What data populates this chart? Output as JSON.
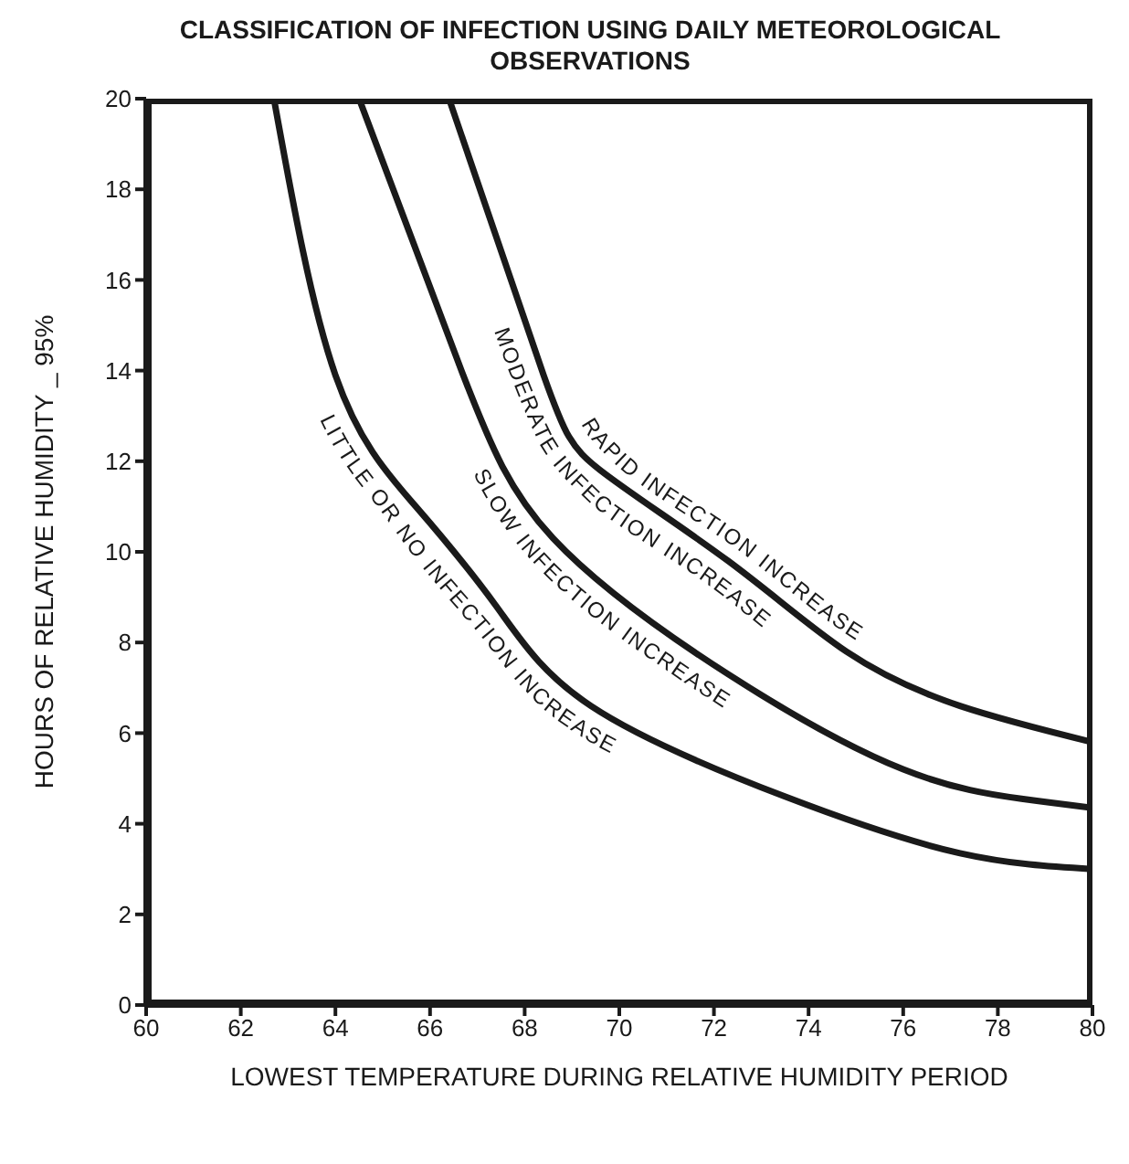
{
  "chart_data": {
    "type": "line",
    "title": "CLASSIFICATION OF INFECTION USING DAILY METEOROLOGICAL OBSERVATIONS",
    "xlabel": "LOWEST TEMPERATURE DURING RELATIVE HUMIDITY PERIOD",
    "ylabel": "HOURS OF RELATIVE HUMIDITY _ 95%",
    "xlim": [
      60,
      80
    ],
    "xticks": [
      60,
      62,
      64,
      66,
      68,
      70,
      72,
      74,
      76,
      78,
      80
    ],
    "ylim": [
      0,
      20
    ],
    "yticks": [
      0,
      2,
      4,
      6,
      8,
      10,
      12,
      14,
      16,
      18,
      20
    ],
    "grid": false,
    "marker": "none",
    "line_style": "solid",
    "series": [
      {
        "color": "#1a1a1a",
        "x": [
          62.7,
          64.0,
          65.7,
          67.4,
          69.4,
          73.5,
          77.2,
          80
        ],
        "values": [
          20,
          13.9,
          11.0,
          8.8,
          6.6,
          4.6,
          3.35,
          3.0
        ]
      },
      {
        "color": "#1a1a1a",
        "x": [
          64.5,
          66.7,
          68.6,
          72.3,
          76.0,
          78.5,
          80
        ],
        "values": [
          20,
          13.9,
          10.3,
          7.3,
          5.2,
          4.55,
          4.35
        ]
      },
      {
        "color": "#1a1a1a",
        "x": [
          66.4,
          68.4,
          69.6,
          72.3,
          74.8,
          77.2,
          80
        ],
        "values": [
          20,
          13.9,
          11.8,
          9.8,
          7.8,
          6.6,
          5.8
        ]
      }
    ],
    "annotations": [
      "LITTLE OR NO INFECTION INCREASE",
      "SLOW INFECTION INCREASE",
      "MODERATE INFECTION INCREASE",
      "RAPID INFECTION INCREASE"
    ]
  }
}
